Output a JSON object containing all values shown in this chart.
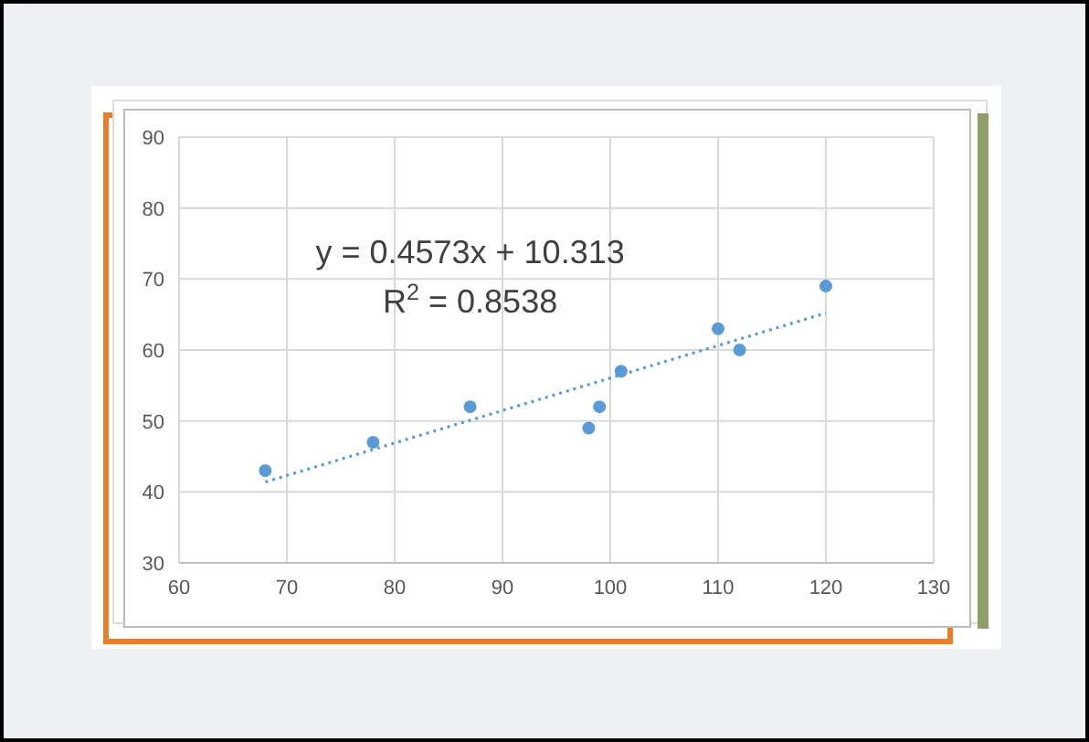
{
  "chart_data": {
    "type": "scatter",
    "annotations": [
      "y = 0.4573x + 10.313",
      "R$^{2}$ = 0.8538"
    ],
    "series": [
      {
        "color": "#5b9bd5",
        "marker": "circle",
        "x": [
          68,
          78,
          87,
          98,
          99,
          101,
          110,
          112,
          120
        ],
        "values": [
          43,
          47,
          52,
          49,
          52,
          57,
          63,
          60,
          69
        ]
      },
      {
        "type": "line",
        "color": "#5b9bd5",
        "line_style": "dotted",
        "x": [
          68,
          120
        ],
        "values": [
          41.4,
          65.2
        ]
      }
    ],
    "xlim": [
      60,
      130
    ],
    "xticks": [
      60,
      70,
      80,
      90,
      100,
      110,
      120,
      130
    ],
    "ylim": [
      30,
      90
    ],
    "yticks": [
      30,
      40,
      50,
      60,
      70,
      80,
      90
    ],
    "grid": true
  }
}
